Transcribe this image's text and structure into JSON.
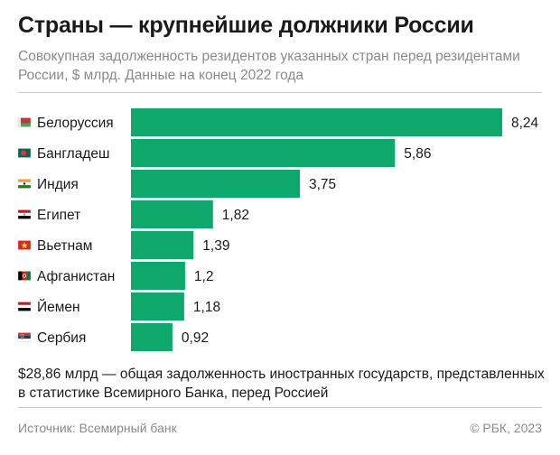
{
  "header": {
    "title": "Страны — крупнейшие должники России",
    "subtitle": "Совокупная задолженность резидентов указанных стран перед резидентами России, $ млрд. Данные на конец 2022 года"
  },
  "chart_data": {
    "type": "bar",
    "orientation": "horizontal",
    "categories": [
      "Белоруссия",
      "Бангладеш",
      "Индия",
      "Египет",
      "Вьетнам",
      "Афганистан",
      "Йемен",
      "Сербия"
    ],
    "values": [
      8.24,
      5.86,
      3.75,
      1.82,
      1.39,
      1.2,
      1.18,
      0.92
    ],
    "value_labels": [
      "8,24",
      "5,86",
      "3,75",
      "1,82",
      "1,39",
      "1,2",
      "1,18",
      "0,92"
    ],
    "flag_icons": [
      "belarus-flag-icon",
      "bangladesh-flag-icon",
      "india-flag-icon",
      "egypt-flag-icon",
      "vietnam-flag-icon",
      "afghanistan-flag-icon",
      "yemen-flag-icon",
      "serbia-flag-icon"
    ],
    "bar_color": "#0ea86c",
    "grid": false,
    "legend": "none"
  },
  "footer": {
    "note": "$28,86 млрд — общая задолженность иностранных государств, представленных в статистике Всемирного Банка, перед Россией",
    "source": "Источник: Всемирный банк",
    "copyright": "© РБК, 2023"
  }
}
